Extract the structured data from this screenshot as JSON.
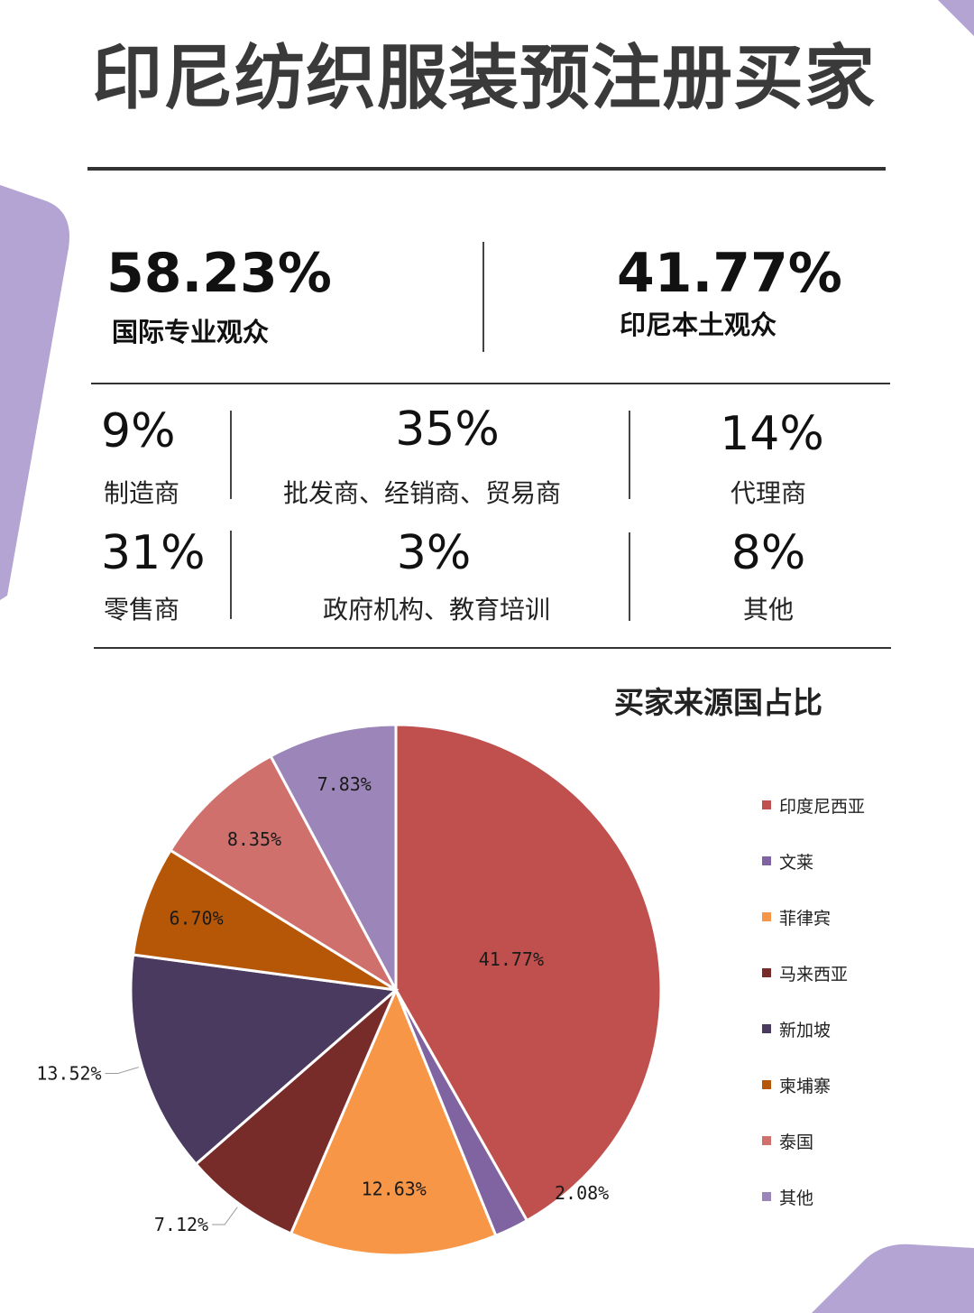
{
  "header": {
    "title": "印尼纺织服装预注册买家"
  },
  "audience": {
    "international": {
      "percent": "58.23%",
      "label": "国际专业观众"
    },
    "local": {
      "percent": "41.77%",
      "label": "印尼本土观众"
    }
  },
  "categories": [
    {
      "percent": "9%",
      "label": "制造商"
    },
    {
      "percent": "35%",
      "label": "批发商、经销商、贸易商"
    },
    {
      "percent": "14%",
      "label": "代理商"
    },
    {
      "percent": "31%",
      "label": "零售商"
    },
    {
      "percent": "3%",
      "label": "政府机构、教育培训"
    },
    {
      "percent": "8%",
      "label": "其他"
    }
  ],
  "colors": {
    "accent_purple": "#b3a4d3",
    "rule": "#333333"
  },
  "chart_data": {
    "type": "pie",
    "title": "买家来源国占比",
    "legend_position": "right",
    "categories": [
      "印度尼西亚",
      "文莱",
      "菲律宾",
      "马来西亚",
      "新加坡",
      "柬埔寨",
      "泰国",
      "其他"
    ],
    "values": [
      41.77,
      2.08,
      12.63,
      7.12,
      13.52,
      6.7,
      8.35,
      7.83
    ],
    "labels": [
      "41.77%",
      "2.08%",
      "12.63%",
      "7.12%",
      "13.52%",
      "6.70%",
      "8.35%",
      "7.83%"
    ],
    "colors": [
      "#c0504d",
      "#8064a2",
      "#f79646",
      "#772c2a",
      "#4b3a60",
      "#b65708",
      "#cf706d",
      "#9c85b8"
    ]
  }
}
